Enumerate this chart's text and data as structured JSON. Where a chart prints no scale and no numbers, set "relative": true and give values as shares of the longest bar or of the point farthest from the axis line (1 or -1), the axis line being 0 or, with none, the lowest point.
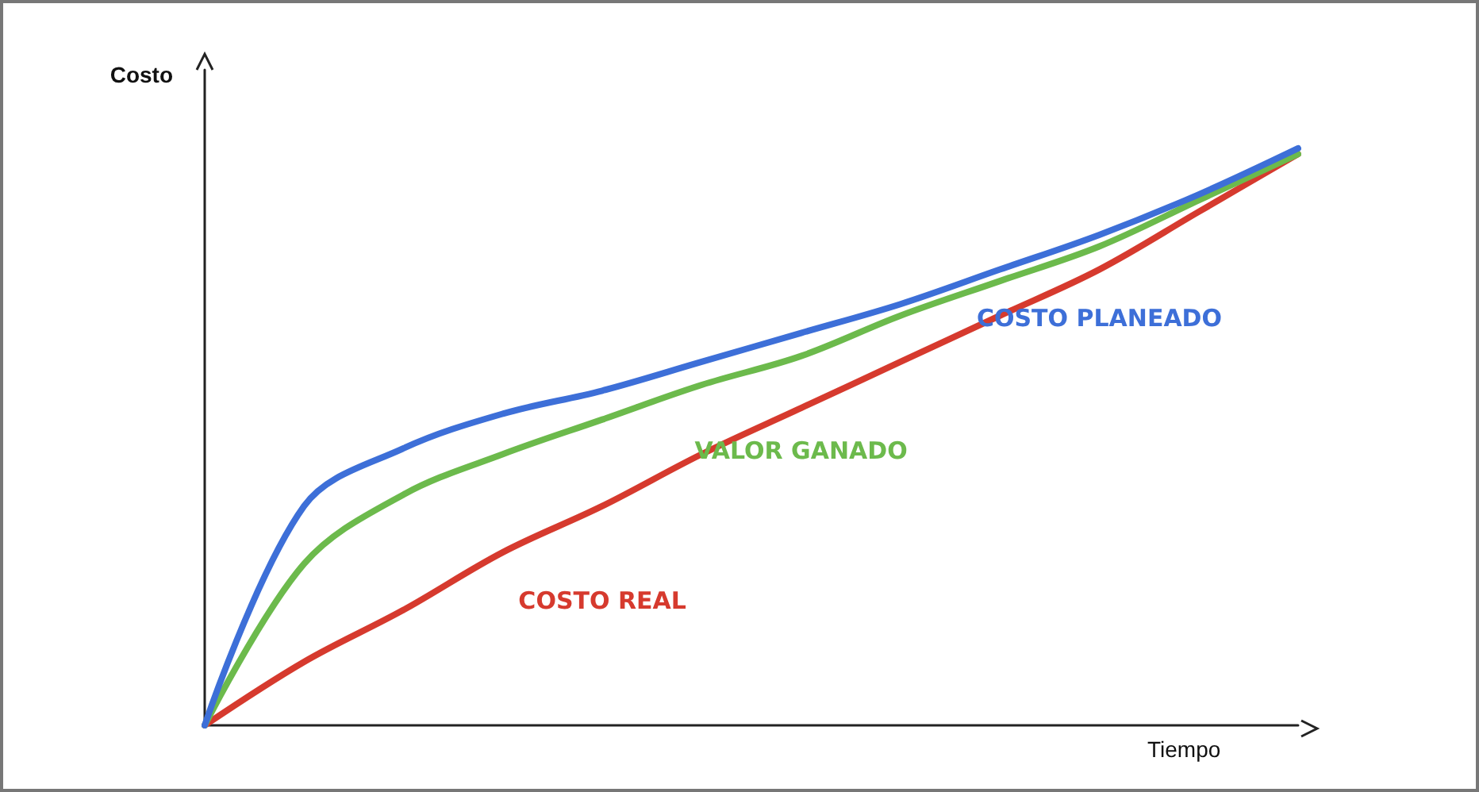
{
  "chart_data": {
    "type": "line",
    "relative": true,
    "xlabel": "Tiempo",
    "ylabel": "Costo",
    "categories": [
      null,
      null,
      null,
      null,
      null,
      null,
      null,
      null,
      null,
      null,
      null,
      null
    ],
    "series": [
      {
        "name": "COSTO PLANEADO",
        "color": "#3d6fd8",
        "values": [
          0,
          0.38,
          0.48,
          0.54,
          0.58,
          0.63,
          0.68,
          0.73,
          0.79,
          0.85,
          0.92,
          1
        ]
      },
      {
        "name": "VALOR GANADO",
        "color": "#6cba4c",
        "values": [
          0,
          0.28,
          0.4,
          0.47,
          0.53,
          0.59,
          0.64,
          0.71,
          0.77,
          0.83,
          0.91,
          0.99
        ]
      },
      {
        "name": "COSTO REAL",
        "color": "#d63a2e",
        "values": [
          0,
          0.11,
          0.2,
          0.3,
          0.38,
          0.47,
          0.55,
          0.63,
          0.71,
          0.79,
          0.89,
          0.99
        ]
      }
    ],
    "grid": false,
    "legend": false,
    "marker": "none",
    "line_style": "solid"
  }
}
